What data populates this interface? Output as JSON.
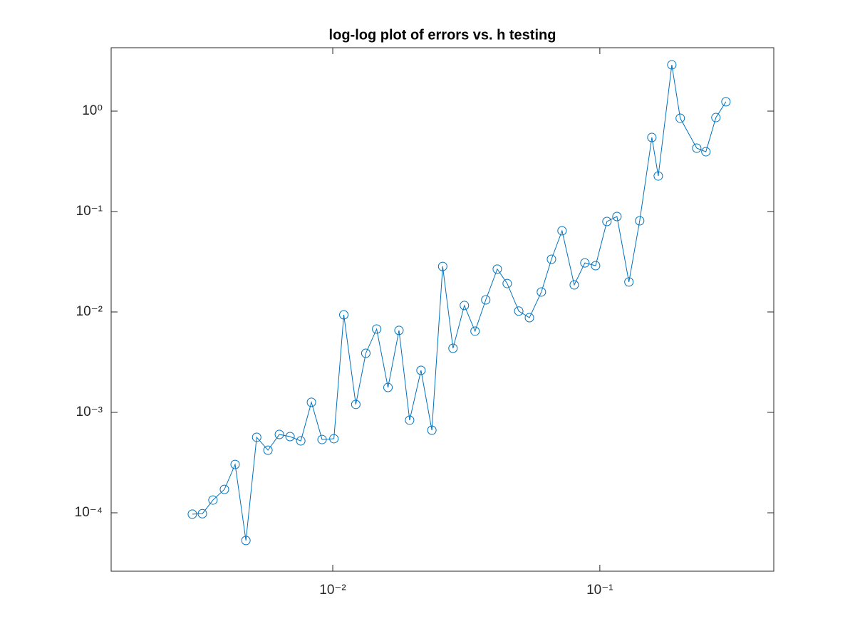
{
  "chart_data": {
    "type": "line",
    "title": "log-log plot of errors vs. h testing",
    "xscale": "log",
    "yscale": "log",
    "grid": false,
    "marker": "circle",
    "xlim": [
      0.00148,
      0.448
    ],
    "ylim": [
      2.62e-05,
      4.28
    ],
    "xticks": [
      {
        "value": 0.01,
        "label": "10⁻²"
      },
      {
        "value": 0.1,
        "label": "10⁻¹"
      }
    ],
    "yticks": [
      {
        "value": 0.0001,
        "label": "10⁻⁴"
      },
      {
        "value": 0.001,
        "label": "10⁻³"
      },
      {
        "value": 0.01,
        "label": "10⁻²"
      },
      {
        "value": 0.1,
        "label": "10⁻¹"
      },
      {
        "value": 1,
        "label": "10⁰"
      }
    ],
    "x": [
      0.00298,
      0.00325,
      0.00356,
      0.00393,
      0.00431,
      0.00473,
      0.00519,
      0.00572,
      0.00631,
      0.00692,
      0.00759,
      0.00832,
      0.00912,
      0.0101,
      0.011,
      0.0122,
      0.0133,
      0.0146,
      0.0161,
      0.0177,
      0.0194,
      0.0214,
      0.0235,
      0.0258,
      0.0282,
      0.0311,
      0.0341,
      0.0374,
      0.0413,
      0.045,
      0.0497,
      0.0545,
      0.0604,
      0.0659,
      0.0722,
      0.0802,
      0.0879,
      0.0964,
      0.1063,
      0.1159,
      0.1285,
      0.141,
      0.1566,
      0.1655,
      0.186,
      0.2,
      0.2306,
      0.2495,
      0.272,
      0.2966
    ],
    "series": [
      {
        "color": "#0072bd",
        "values": [
          9.7e-05,
          9.8e-05,
          0.000134,
          0.000171,
          0.000303,
          5.3e-05,
          0.000565,
          0.00042,
          0.000603,
          0.000574,
          0.00052,
          0.00126,
          0.000537,
          0.000547,
          0.00937,
          0.0012,
          0.00388,
          0.00676,
          0.00177,
          0.00655,
          0.000836,
          0.00262,
          0.000665,
          0.0284,
          0.00435,
          0.0116,
          0.00644,
          0.0132,
          0.0267,
          0.0192,
          0.0102,
          0.00877,
          0.0158,
          0.0335,
          0.0644,
          0.0186,
          0.0308,
          0.0289,
          0.0796,
          0.0892,
          0.0199,
          0.0809,
          0.547,
          0.226,
          2.89,
          0.849,
          0.428,
          0.394,
          0.863,
          1.24
        ]
      }
    ]
  }
}
